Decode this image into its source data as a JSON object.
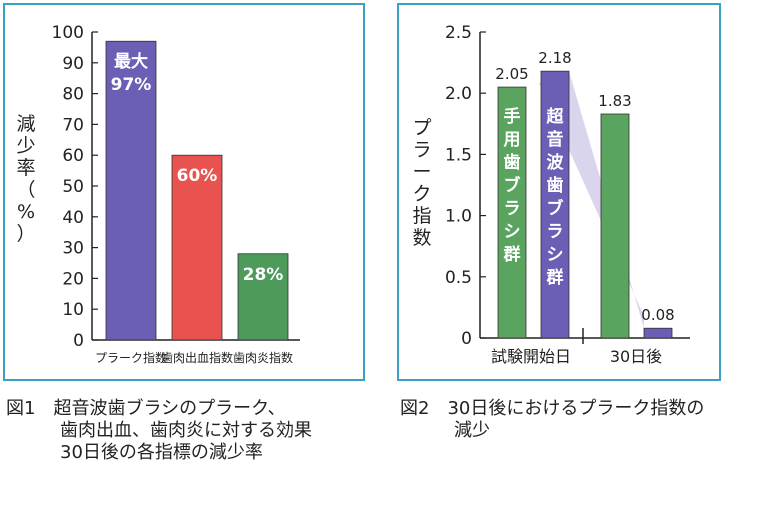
{
  "chart_data": [
    {
      "type": "bar",
      "title": "",
      "ylabel": "減少率（%）",
      "xlabel": "",
      "ylim": [
        0,
        100
      ],
      "yticks": [
        0,
        10,
        20,
        30,
        40,
        50,
        60,
        70,
        80,
        90,
        100
      ],
      "grid": false,
      "legend": "none",
      "categories": [
        "プラーク指数",
        "歯肉出血指数",
        "歯肉炎指数"
      ],
      "values": [
        97,
        60,
        28
      ],
      "bar_labels": [
        "最大\n97%",
        "60%",
        "28%"
      ],
      "colors": [
        "#6a5fb5",
        "#e8524f",
        "#4d9a5a"
      ],
      "frame_color": "#3aa0c8"
    },
    {
      "type": "bar",
      "title": "",
      "ylabel": "プラーク指数",
      "xlabel": "",
      "ylim": [
        0,
        2.5
      ],
      "yticks": [
        "0",
        "0.5",
        "1.0",
        "1.5",
        "2.0",
        "2.5"
      ],
      "grid": false,
      "legend": "none",
      "categories": [
        "試験開始日",
        "30日後"
      ],
      "series": [
        {
          "name": "手用歯ブラシ群",
          "values": [
            2.05,
            1.83
          ],
          "color": "#5aa45f"
        },
        {
          "name": "超音波歯ブラシ群",
          "values": [
            2.18,
            0.08
          ],
          "color": "#6a5fb5"
        }
      ],
      "value_labels": [
        [
          "2.05",
          "1.83"
        ],
        [
          "2.18",
          "0.08"
        ]
      ],
      "frame_color": "#3aa0c8"
    }
  ],
  "captions": {
    "fig1": "図1　超音波歯ブラシのプラーク、\n　　　歯肉出血、歯肉炎に対する効果\n　　　30日後の各指標の減少率",
    "fig2": "図2　30日後におけるプラーク指数の\n　　　減少"
  }
}
